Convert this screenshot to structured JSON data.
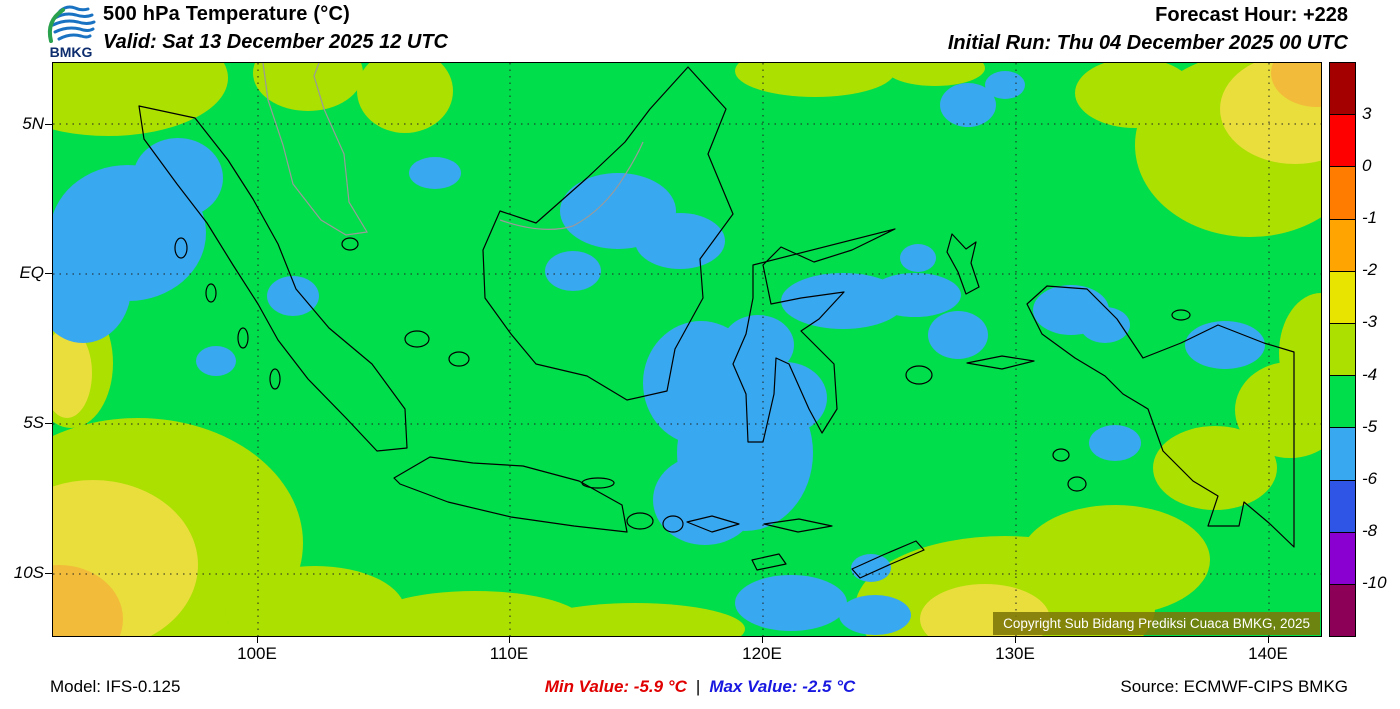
{
  "header": {
    "logo_text": "BMKG",
    "title": "500 hPa Temperature (°C)",
    "valid": "Valid: Sat 13 December 2025 12 UTC",
    "forecast_hour": "Forecast Hour: +228",
    "initial_run": "Initial Run: Thu 04 December 2025 00 UTC"
  },
  "map": {
    "copyright": "Copyright Sub Bidang Prediksi Cuaca BMKG, 2025",
    "lat_ticks": [
      "5N",
      "EQ",
      "5S",
      "10S"
    ],
    "lon_ticks": [
      "100E",
      "110E",
      "120E",
      "130E",
      "140E"
    ]
  },
  "legend": {
    "labels": [
      "3",
      "0",
      "-1",
      "-2",
      "-3",
      "-4",
      "-5",
      "-6",
      "-8",
      "-10"
    ],
    "colors": [
      "#a50000",
      "#fe0000",
      "#ff7c00",
      "#ffa400",
      "#e8e400",
      "#abe000",
      "#00de4c",
      "#38a8f0",
      "#2f55e6",
      "#8a00d0",
      "#8d0057"
    ]
  },
  "footer": {
    "model": "Model: IFS-0.125",
    "min_value": "Min Value: -5.9 °C",
    "separator": "|",
    "max_value": "Max Value: -2.5 °C",
    "source": "Source: ECMWF-CIPS BMKG"
  },
  "chart_data": {
    "type": "heatmap",
    "title": "500 hPa Temperature (°C)",
    "valid": "Sat 13 December 2025 12 UTC",
    "initial_run": "Thu 04 December 2025 00 UTC",
    "forecast_hour_hours": 228,
    "model": "IFS-0.125",
    "source": "ECMWF-CIPS BMKG",
    "min_value_c": -5.9,
    "max_value_c": -2.5,
    "legend_levels_c": [
      3,
      0,
      -1,
      -2,
      -3,
      -4,
      -5,
      -6,
      -8,
      -10
    ],
    "legend_colors": [
      "#a50000",
      "#fe0000",
      "#ff7c00",
      "#ffa400",
      "#e8e400",
      "#abe000",
      "#00de4c",
      "#38a8f0",
      "#2f55e6",
      "#8a00d0",
      "#8d0057"
    ],
    "x_ticks": [
      "100E",
      "110E",
      "120E",
      "130E",
      "140E"
    ],
    "y_ticks": [
      "5N",
      "EQ",
      "5S",
      "10S"
    ],
    "field_summary": "Dominantly -5 to -4 °C (green) over the whole Indonesian domain; -6 to -5 °C (blue) pools over northern Sumatra, central Kalimantan, the Java Sea / Sulawesi area, the Banda Sea and spots over Papua; -4 to -2 °C (yellow-green to yellow) toward the SW and NE corners of the domain."
  }
}
